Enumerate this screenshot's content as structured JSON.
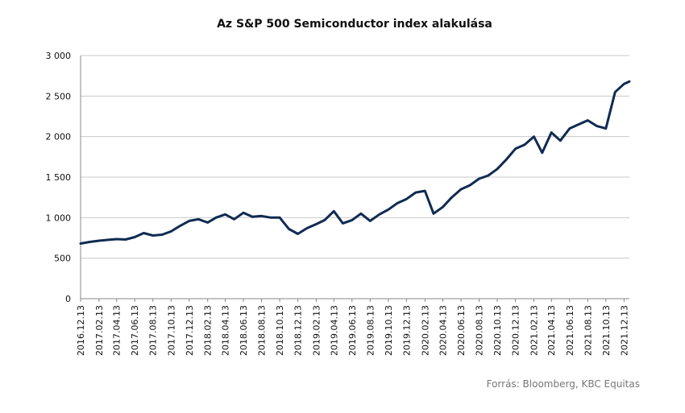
{
  "chart_data": {
    "type": "line",
    "title": "Az S&P 500 Semiconductor index alakulása",
    "xlabel": "",
    "ylabel": "",
    "ylim": [
      0,
      3000
    ],
    "y_ticks": [
      "0",
      "500",
      "1 000",
      "1 500",
      "2 000",
      "2 500",
      "3 000"
    ],
    "y_tick_values": [
      0,
      500,
      1000,
      1500,
      2000,
      2500,
      3000
    ],
    "x_tick_labels": [
      "2016.12.13",
      "2017.02.13",
      "2017.04.13",
      "2017.06.13",
      "2017.08.13",
      "2017.10.13",
      "2017.12.13",
      "2018.02.13",
      "2018.04.13",
      "2018.06.13",
      "2018.08.13",
      "2018.10.13",
      "2018.12.13",
      "2019.02.13",
      "2019.04.13",
      "2019.06.13",
      "2019.08.13",
      "2019.10.13",
      "2019.12.13",
      "2020.02.13",
      "2020.04.13",
      "2020.06.13",
      "2020.08.13",
      "2020.10.13",
      "2020.12.13",
      "2021.02.13",
      "2021.04.13",
      "2021.06.13",
      "2021.08.13",
      "2021.10.13",
      "2021.12.13"
    ],
    "grid": true,
    "line_color": "#0f2b52",
    "series": [
      {
        "x": [
          "2016.12.13",
          "2017.01.13",
          "2017.02.13",
          "2017.03.13",
          "2017.04.13",
          "2017.05.13",
          "2017.06.13",
          "2017.07.13",
          "2017.08.13",
          "2017.09.13",
          "2017.10.13",
          "2017.11.13",
          "2017.12.13",
          "2018.01.13",
          "2018.02.13",
          "2018.03.13",
          "2018.04.13",
          "2018.05.13",
          "2018.06.13",
          "2018.07.13",
          "2018.08.13",
          "2018.09.13",
          "2018.10.13",
          "2018.11.13",
          "2018.12.13",
          "2019.01.13",
          "2019.02.13",
          "2019.03.13",
          "2019.04.13",
          "2019.05.13",
          "2019.06.13",
          "2019.07.13",
          "2019.08.13",
          "2019.09.13",
          "2019.10.13",
          "2019.11.13",
          "2019.12.13",
          "2020.01.13",
          "2020.02.13",
          "2020.03.13",
          "2020.04.13",
          "2020.05.13",
          "2020.06.13",
          "2020.07.13",
          "2020.08.13",
          "2020.09.13",
          "2020.10.13",
          "2020.11.13",
          "2020.12.13",
          "2021.01.13",
          "2021.02.13",
          "2021.03.13",
          "2021.04.13",
          "2021.05.13",
          "2021.06.13",
          "2021.07.13",
          "2021.08.13",
          "2021.09.13",
          "2021.10.13",
          "2021.11.13",
          "2021.12.13",
          "2021.12.31"
        ],
        "values": [
          680,
          700,
          715,
          725,
          735,
          730,
          760,
          810,
          780,
          790,
          830,
          900,
          960,
          980,
          940,
          1000,
          1040,
          980,
          1060,
          1010,
          1020,
          1000,
          1000,
          860,
          800,
          870,
          920,
          970,
          1080,
          930,
          970,
          1050,
          960,
          1040,
          1100,
          1180,
          1230,
          1310,
          1330,
          1050,
          1130,
          1250,
          1350,
          1400,
          1480,
          1520,
          1600,
          1720,
          1850,
          1900,
          2000,
          1800,
          2050,
          1950,
          2100,
          2150,
          2200,
          2130,
          2100,
          2550,
          2650,
          2680
        ]
      }
    ]
  },
  "source": "Forrás: Bloomberg,  KBC Equitas"
}
